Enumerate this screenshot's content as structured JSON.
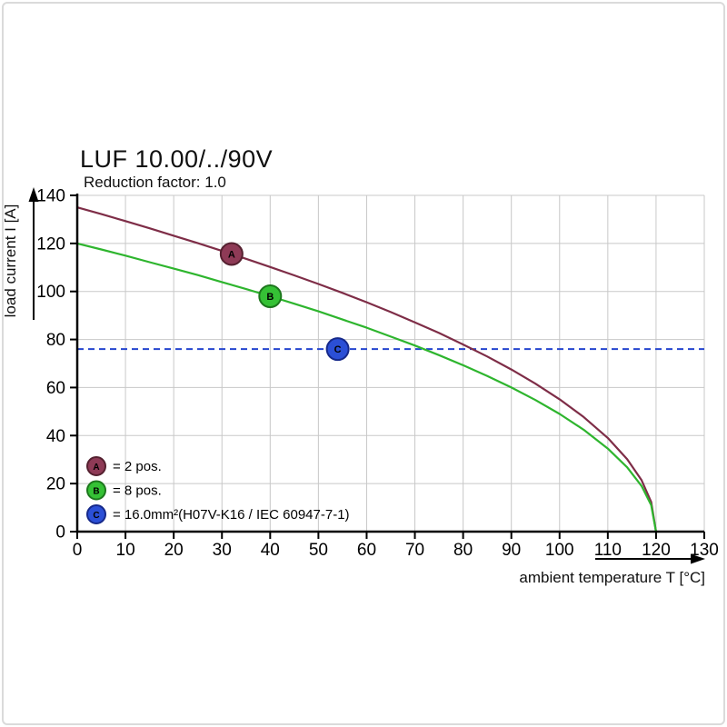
{
  "frame": {
    "background": "#ffffff",
    "border_color": "#dadada"
  },
  "chart_data": {
    "type": "line",
    "title": "LUF 10.00/../90V",
    "subtitle": "Reduction factor: 1.0",
    "xlabel": "ambient temperature T [°C]",
    "ylabel": "load current I [A]",
    "xlim": [
      0,
      130
    ],
    "ylim": [
      0,
      140
    ],
    "xticks": [
      0,
      10,
      20,
      30,
      40,
      50,
      60,
      70,
      80,
      90,
      100,
      110,
      120,
      130
    ],
    "yticks": [
      0,
      20,
      40,
      60,
      80,
      100,
      120,
      140
    ],
    "grid": true,
    "grid_color": "#c8c8c8",
    "axis_color": "#000000",
    "legend_position": "bottom-left",
    "reference_line": {
      "y": 76,
      "color": "#2545cf",
      "style": "dashed"
    },
    "series": [
      {
        "id": "A",
        "legend_label": "= 2 pos.",
        "color": "#7e2d47",
        "marker_fill": "#8e3a56",
        "marker_stroke": "#54202f",
        "marker_at": {
          "x": 32,
          "y": 115.6
        },
        "points": [
          [
            0,
            135
          ],
          [
            5,
            132.2
          ],
          [
            10,
            129.3
          ],
          [
            15,
            126.3
          ],
          [
            20,
            123.2
          ],
          [
            25,
            120.1
          ],
          [
            30,
            116.9
          ],
          [
            35,
            113.6
          ],
          [
            40,
            110.2
          ],
          [
            45,
            106.7
          ],
          [
            50,
            103.1
          ],
          [
            55,
            99.4
          ],
          [
            60,
            95.5
          ],
          [
            65,
            91.4
          ],
          [
            70,
            87.1
          ],
          [
            75,
            82.7
          ],
          [
            80,
            77.9
          ],
          [
            85,
            72.9
          ],
          [
            90,
            67.5
          ],
          [
            95,
            61.6
          ],
          [
            100,
            55.1
          ],
          [
            105,
            47.7
          ],
          [
            110,
            39.0
          ],
          [
            114,
            30.2
          ],
          [
            117,
            21.4
          ],
          [
            119,
            12.3
          ],
          [
            120,
            0
          ]
        ]
      },
      {
        "id": "B",
        "legend_label": "= 8 pos.",
        "color": "#2eb52e",
        "marker_fill": "#35c135",
        "marker_stroke": "#1d771d",
        "marker_at": {
          "x": 40,
          "y": 98
        },
        "points": [
          [
            0,
            120
          ],
          [
            5,
            117.5
          ],
          [
            10,
            114.9
          ],
          [
            15,
            112.2
          ],
          [
            20,
            109.5
          ],
          [
            25,
            106.8
          ],
          [
            30,
            103.9
          ],
          [
            35,
            101.0
          ],
          [
            40,
            98.0
          ],
          [
            45,
            94.9
          ],
          [
            50,
            91.7
          ],
          [
            55,
            88.3
          ],
          [
            60,
            84.9
          ],
          [
            65,
            81.2
          ],
          [
            70,
            77.5
          ],
          [
            75,
            73.5
          ],
          [
            80,
            69.3
          ],
          [
            85,
            64.8
          ],
          [
            90,
            60.0
          ],
          [
            95,
            54.8
          ],
          [
            100,
            49.0
          ],
          [
            105,
            42.4
          ],
          [
            110,
            34.6
          ],
          [
            114,
            26.8
          ],
          [
            117,
            19.0
          ],
          [
            119,
            11.0
          ],
          [
            120,
            0
          ]
        ]
      },
      {
        "id": "C",
        "legend_label": "= 16.0mm²(H07V-K16 / IEC 60947-7-1)",
        "color": "#2545cf",
        "marker_fill": "#2b4fd6",
        "marker_stroke": "#16298a",
        "marker_at": {
          "x": 54,
          "y": 76
        },
        "points": []
      }
    ]
  }
}
